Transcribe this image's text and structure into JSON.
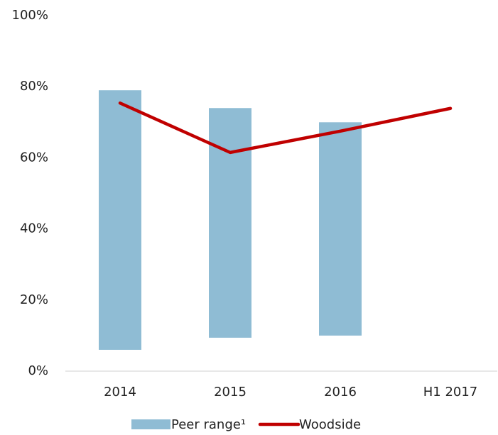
{
  "chart_data": {
    "type": "range-bar-line",
    "categories": [
      "2014",
      "2015",
      "2016",
      "H1 2017"
    ],
    "series": [
      {
        "name": "Peer range¹",
        "color": "#8fbcd4",
        "low": [
          6,
          9.4,
          10,
          null
        ],
        "high": [
          79,
          74,
          70,
          null
        ]
      },
      {
        "name": "Woodside",
        "color": "#c00000",
        "values": [
          75.4,
          61.5,
          67.5,
          73.9
        ]
      }
    ],
    "ylim": [
      0,
      100
    ],
    "yticks": [
      {
        "value": 0,
        "label": "0%"
      },
      {
        "value": 20,
        "label": "20%"
      },
      {
        "value": 40,
        "label": "40%"
      },
      {
        "value": 60,
        "label": "60%"
      },
      {
        "value": 80,
        "label": "80%"
      },
      {
        "value": 100,
        "label": "100%"
      }
    ],
    "grid": false
  }
}
